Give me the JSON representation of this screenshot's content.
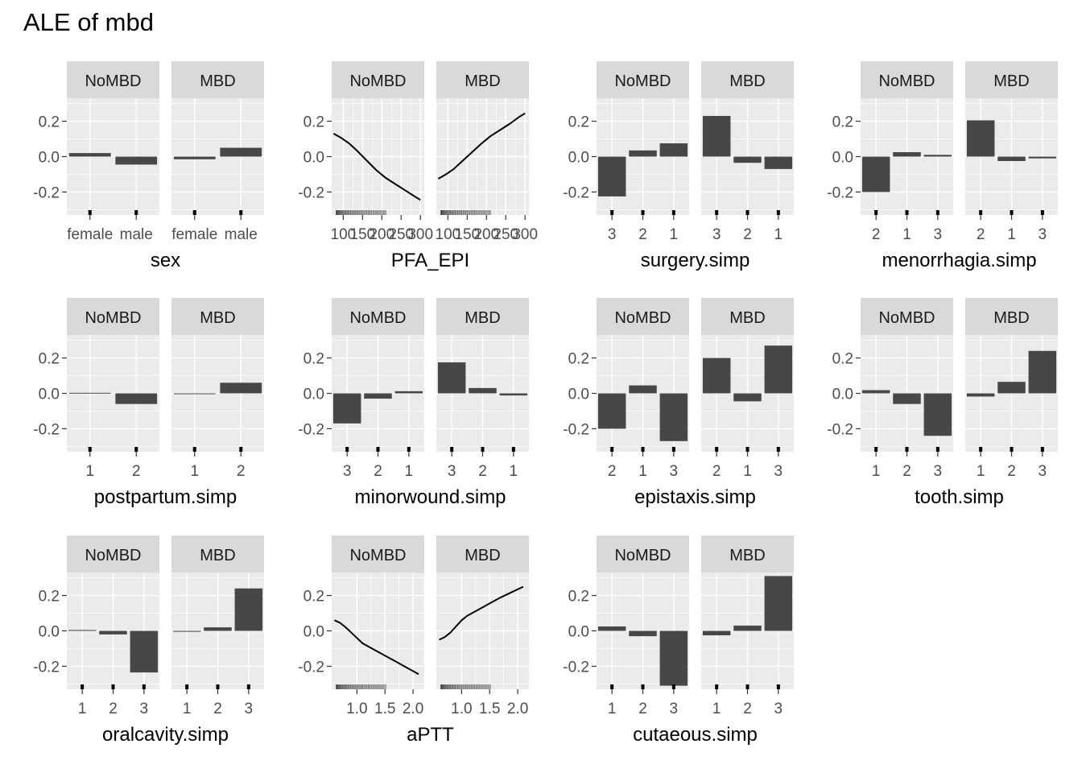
{
  "title": "ALE of mbd",
  "colors": {
    "panel_bg": "#ebebeb",
    "grid": "#ffffff",
    "strip_bg": "#d9d9d9",
    "bar_fill": "#474747",
    "line": "#000000",
    "tick": "#333333",
    "tick_text": "#4d4d4d"
  },
  "facets": [
    "NoMBD",
    "MBD"
  ],
  "y_axis": {
    "ylim": [
      -0.33,
      0.33
    ],
    "ticks": [
      -0.2,
      0.0,
      0.2
    ],
    "tick_labels": [
      "-0.2",
      "0.0",
      "0.2"
    ],
    "grid": true
  },
  "chart_data": [
    {
      "type": "bar",
      "xlabel": "sex",
      "categories": [
        "female",
        "male"
      ],
      "series": [
        {
          "name": "NoMBD",
          "values": [
            0.02,
            -0.045
          ]
        },
        {
          "name": "MBD",
          "values": [
            -0.015,
            0.05
          ]
        }
      ]
    },
    {
      "type": "line",
      "xlabel": "PFA_EPI",
      "xlim": [
        70,
        310
      ],
      "x_ticks": [
        100,
        150,
        200,
        250,
        300
      ],
      "x_tick_labels": [
        "100",
        "150",
        "200",
        "250",
        "300"
      ],
      "series": [
        {
          "name": "NoMBD",
          "x": [
            75,
            95,
            115,
            135,
            160,
            185,
            210,
            235,
            260,
            285,
            300
          ],
          "y": [
            0.13,
            0.105,
            0.075,
            0.035,
            -0.02,
            -0.075,
            -0.12,
            -0.155,
            -0.19,
            -0.225,
            -0.245
          ]
        },
        {
          "name": "MBD",
          "x": [
            75,
            95,
            115,
            135,
            160,
            185,
            210,
            235,
            260,
            285,
            300
          ],
          "y": [
            -0.125,
            -0.1,
            -0.07,
            -0.03,
            0.02,
            0.07,
            0.115,
            0.15,
            0.185,
            0.225,
            0.245
          ]
        }
      ]
    },
    {
      "type": "bar",
      "xlabel": "surgery.simp",
      "categories": [
        "3",
        "2",
        "1"
      ],
      "series": [
        {
          "name": "NoMBD",
          "values": [
            -0.225,
            0.035,
            0.075
          ]
        },
        {
          "name": "MBD",
          "values": [
            0.23,
            -0.035,
            -0.07
          ]
        }
      ]
    },
    {
      "type": "bar",
      "xlabel": "menorrhagia.simp",
      "categories": [
        "2",
        "1",
        "3"
      ],
      "series": [
        {
          "name": "NoMBD",
          "values": [
            -0.2,
            0.025,
            0.01
          ]
        },
        {
          "name": "MBD",
          "values": [
            0.205,
            -0.025,
            -0.01
          ]
        }
      ]
    },
    {
      "type": "bar",
      "xlabel": "postpartum.simp",
      "categories": [
        "1",
        "2"
      ],
      "series": [
        {
          "name": "NoMBD",
          "values": [
            0.003,
            -0.06
          ]
        },
        {
          "name": "MBD",
          "values": [
            -0.003,
            0.06
          ]
        }
      ]
    },
    {
      "type": "bar",
      "xlabel": "minorwound.simp",
      "categories": [
        "3",
        "2",
        "1"
      ],
      "series": [
        {
          "name": "NoMBD",
          "values": [
            -0.17,
            -0.03,
            0.012
          ]
        },
        {
          "name": "MBD",
          "values": [
            0.175,
            0.03,
            -0.012
          ]
        }
      ]
    },
    {
      "type": "bar",
      "xlabel": "epistaxis.simp",
      "categories": [
        "2",
        "1",
        "3"
      ],
      "series": [
        {
          "name": "NoMBD",
          "values": [
            -0.2,
            0.045,
            -0.27
          ]
        },
        {
          "name": "MBD",
          "values": [
            0.2,
            -0.045,
            0.27
          ]
        }
      ]
    },
    {
      "type": "bar",
      "xlabel": "tooth.simp",
      "categories": [
        "1",
        "2",
        "3"
      ],
      "series": [
        {
          "name": "NoMBD",
          "values": [
            0.018,
            -0.06,
            -0.24
          ]
        },
        {
          "name": "MBD",
          "values": [
            -0.018,
            0.065,
            0.24
          ]
        }
      ]
    },
    {
      "type": "bar",
      "xlabel": "oralcavity.simp",
      "categories": [
        "1",
        "2",
        "3"
      ],
      "series": [
        {
          "name": "NoMBD",
          "values": [
            0.005,
            -0.02,
            -0.235
          ]
        },
        {
          "name": "MBD",
          "values": [
            -0.005,
            0.02,
            0.24
          ]
        }
      ]
    },
    {
      "type": "line",
      "xlabel": "aPTT",
      "xlim": [
        0.55,
        2.2
      ],
      "x_ticks": [
        1.0,
        1.5,
        2.0
      ],
      "x_tick_labels": [
        "1.0",
        "1.5",
        "2.0"
      ],
      "series": [
        {
          "name": "NoMBD",
          "x": [
            0.6,
            0.7,
            0.8,
            0.9,
            1.0,
            1.1,
            1.3,
            1.5,
            1.7,
            1.9,
            2.1
          ],
          "y": [
            0.06,
            0.045,
            0.02,
            -0.01,
            -0.04,
            -0.07,
            -0.105,
            -0.14,
            -0.175,
            -0.21,
            -0.245
          ]
        },
        {
          "name": "MBD",
          "x": [
            0.6,
            0.7,
            0.8,
            0.9,
            1.0,
            1.1,
            1.3,
            1.5,
            1.7,
            1.9,
            2.1
          ],
          "y": [
            -0.05,
            -0.035,
            -0.01,
            0.025,
            0.06,
            0.085,
            0.12,
            0.155,
            0.19,
            0.22,
            0.25
          ]
        }
      ]
    },
    {
      "type": "bar",
      "xlabel": "cutaeous.simp",
      "categories": [
        "1",
        "2",
        "3"
      ],
      "series": [
        {
          "name": "NoMBD",
          "values": [
            0.025,
            -0.03,
            -0.31
          ]
        },
        {
          "name": "MBD",
          "values": [
            -0.025,
            0.03,
            0.31
          ]
        }
      ]
    }
  ]
}
